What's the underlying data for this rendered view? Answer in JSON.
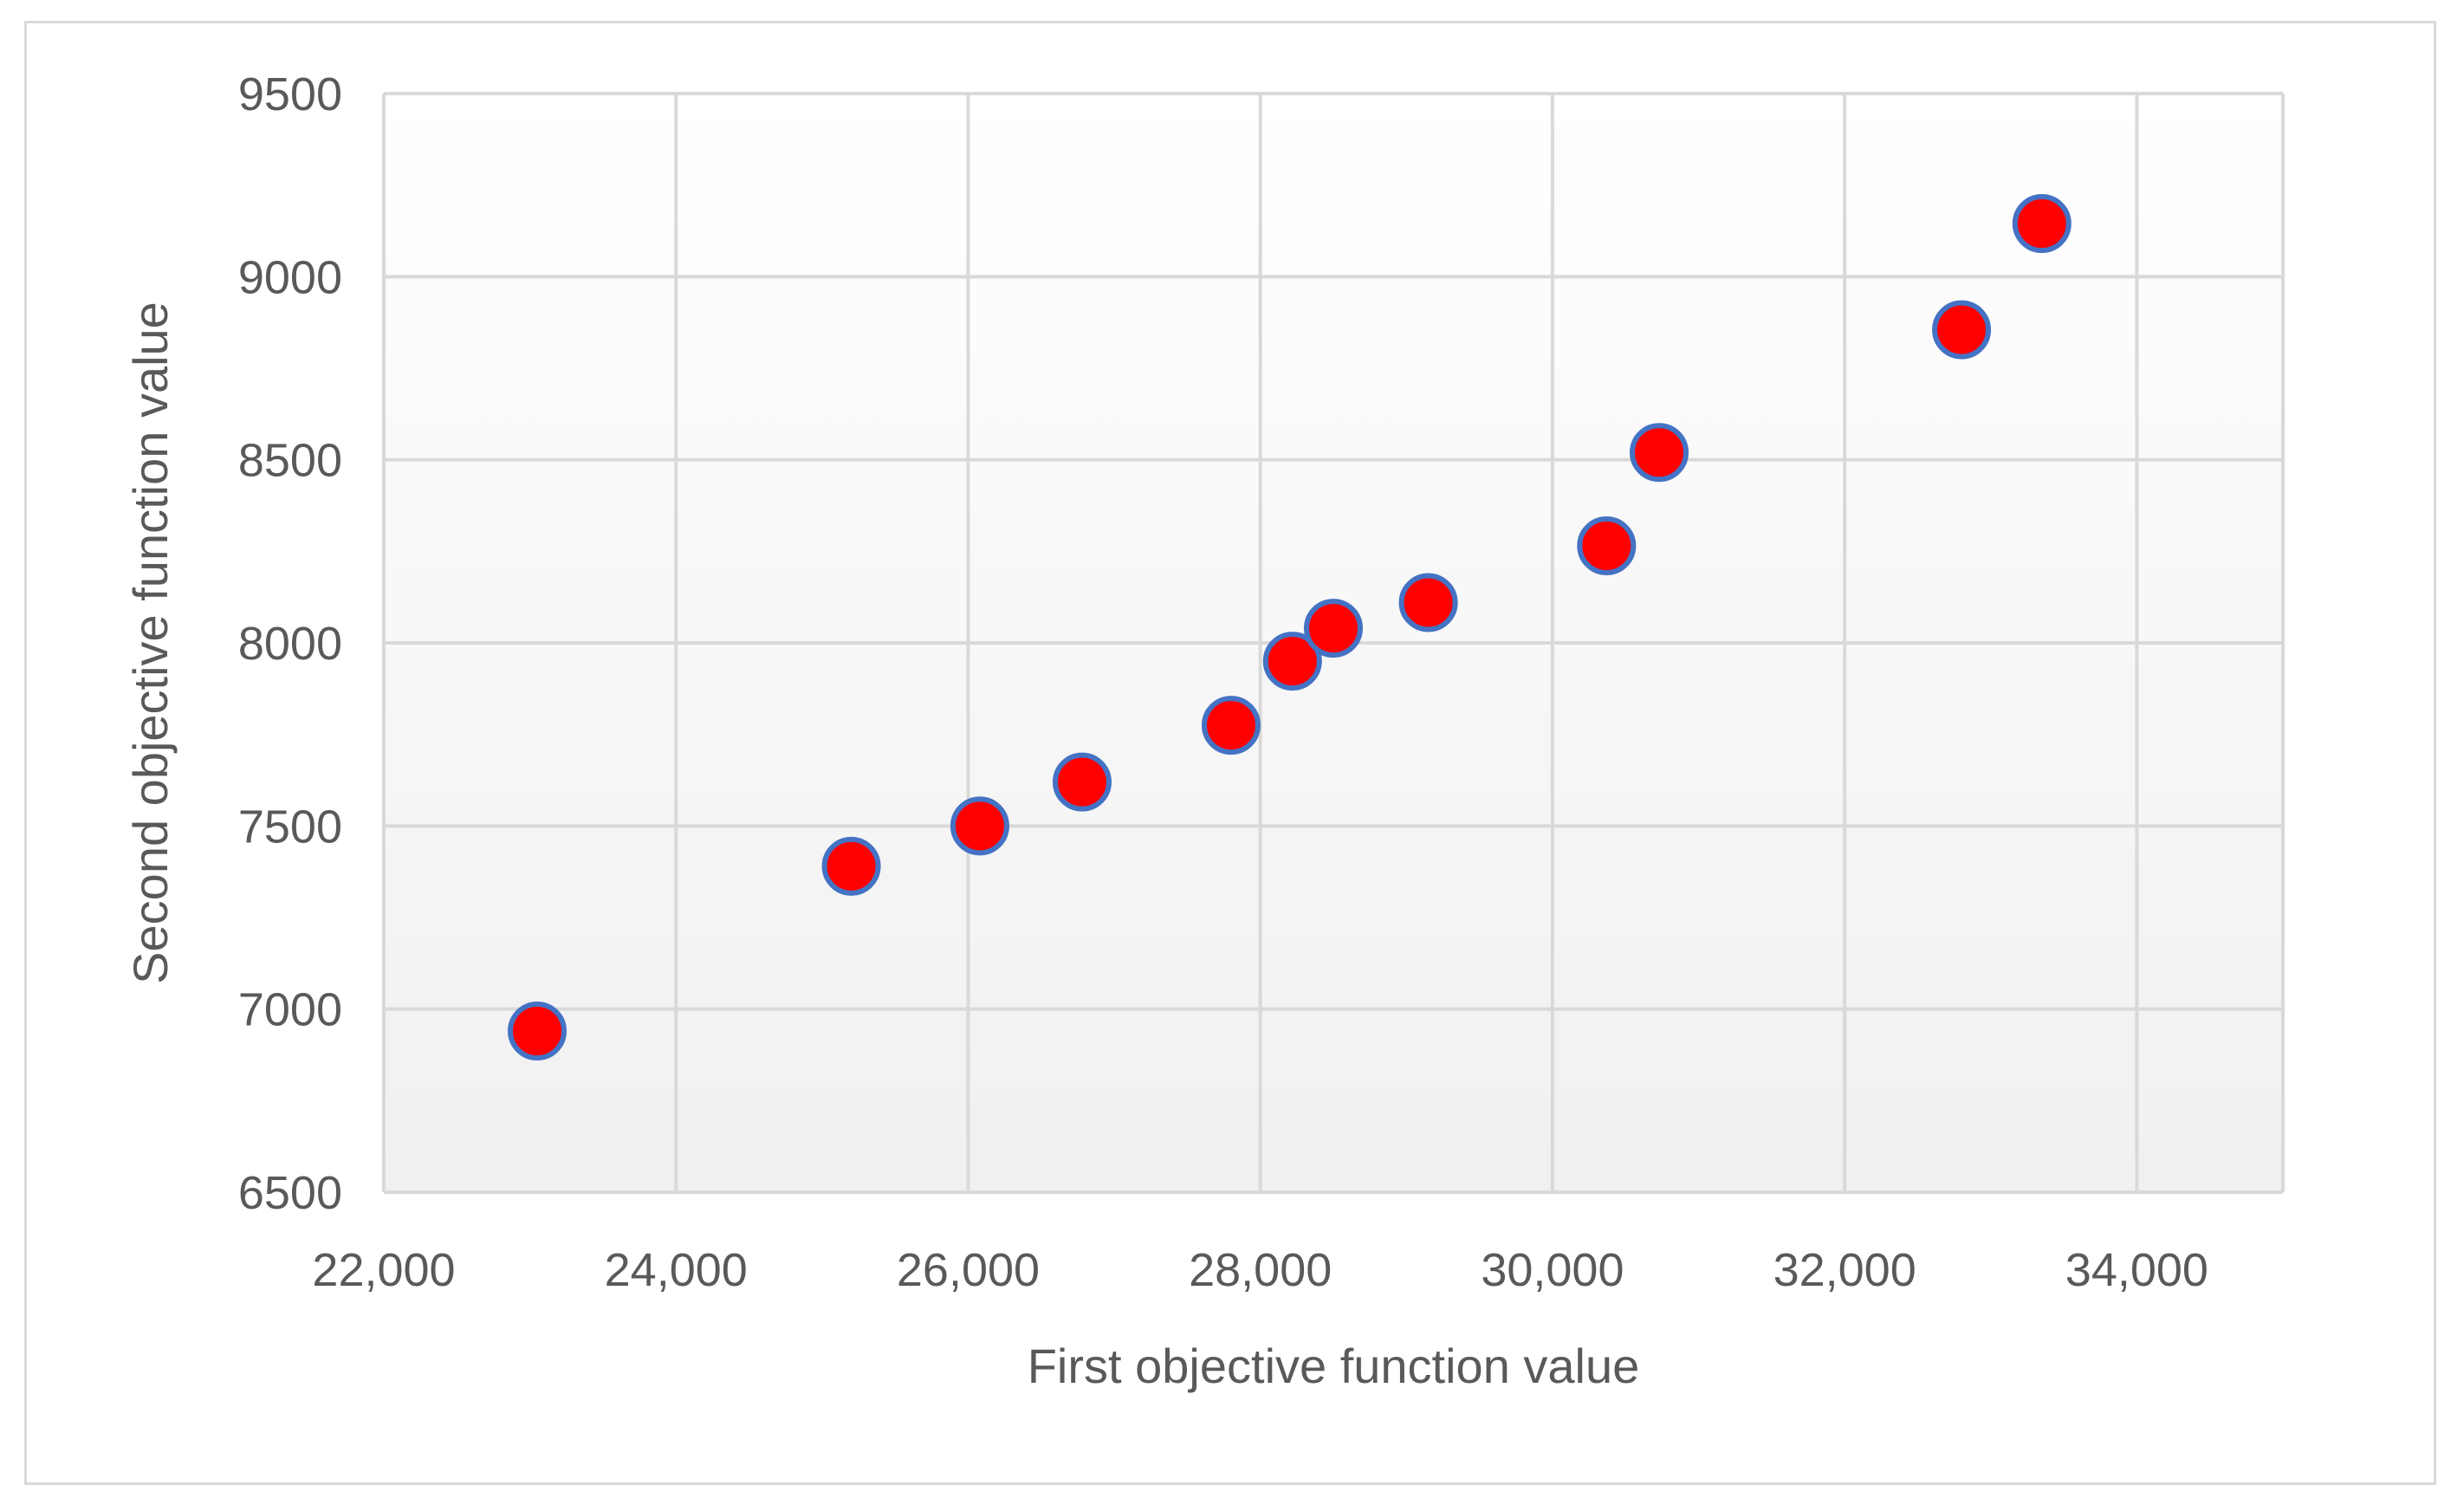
{
  "chart_data": {
    "type": "scatter",
    "title": "",
    "xlabel": "First objective function value",
    "ylabel": "Second objective function value",
    "xlim": [
      22000,
      35000
    ],
    "ylim": [
      6500,
      9500
    ],
    "x_ticks": [
      22000,
      24000,
      26000,
      28000,
      30000,
      32000,
      34000
    ],
    "x_tick_labels": [
      "22,000",
      "24,000",
      "26,000",
      "28,000",
      "30,000",
      "32,000",
      "34,000"
    ],
    "y_ticks": [
      6500,
      7000,
      7500,
      8000,
      8500,
      9000,
      9500
    ],
    "y_tick_labels": [
      "6500",
      "7000",
      "7500",
      "8000",
      "8500",
      "9000",
      "9500"
    ],
    "grid": true,
    "legend": "none",
    "colors": {
      "marker_fill": "#ff0000",
      "marker_stroke": "#4472c4",
      "grid": "#d9d9d9",
      "text": "#595959"
    },
    "series": [
      {
        "points": [
          {
            "x": 23050,
            "y": 6940
          },
          {
            "x": 25200,
            "y": 7390
          },
          {
            "x": 26080,
            "y": 7500
          },
          {
            "x": 26780,
            "y": 7620
          },
          {
            "x": 27800,
            "y": 7775
          },
          {
            "x": 28220,
            "y": 7950
          },
          {
            "x": 28500,
            "y": 8040
          },
          {
            "x": 29150,
            "y": 8110
          },
          {
            "x": 30370,
            "y": 8265
          },
          {
            "x": 30730,
            "y": 8520
          },
          {
            "x": 32800,
            "y": 8855
          },
          {
            "x": 33350,
            "y": 9145
          }
        ]
      }
    ]
  }
}
